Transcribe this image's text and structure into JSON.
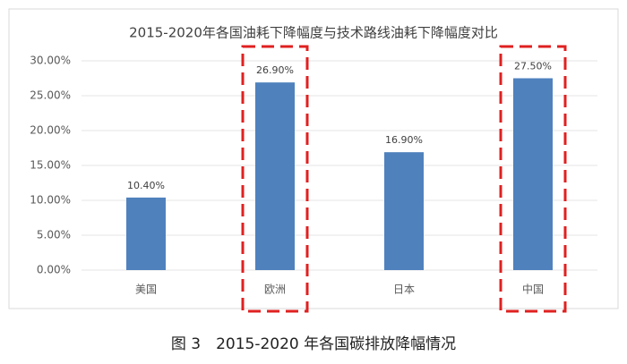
{
  "chart_data": {
    "type": "bar",
    "title": "2015-2020年各国油耗下降幅度与技术路线油耗下降幅度对比",
    "caption": "图 3　2015-2020 年各国碳排放降幅情况",
    "categories": [
      "美国",
      "欧洲",
      "日本",
      "中国"
    ],
    "values": [
      10.4,
      26.9,
      16.9,
      27.5
    ],
    "value_labels": [
      "10.40%",
      "26.90%",
      "16.90%",
      "27.50%"
    ],
    "color": "#4f81bd",
    "ylim": [
      0,
      30
    ],
    "yticks": [
      {
        "value": 0,
        "label": "0.00%"
      },
      {
        "value": 5,
        "label": "5.00%"
      },
      {
        "value": 10,
        "label": "10.00%"
      },
      {
        "value": 15,
        "label": "15.00%"
      },
      {
        "value": 20,
        "label": "20.00%"
      },
      {
        "value": 25,
        "label": "25.00%"
      },
      {
        "value": 30,
        "label": "30.00%"
      }
    ],
    "grid": true
  }
}
